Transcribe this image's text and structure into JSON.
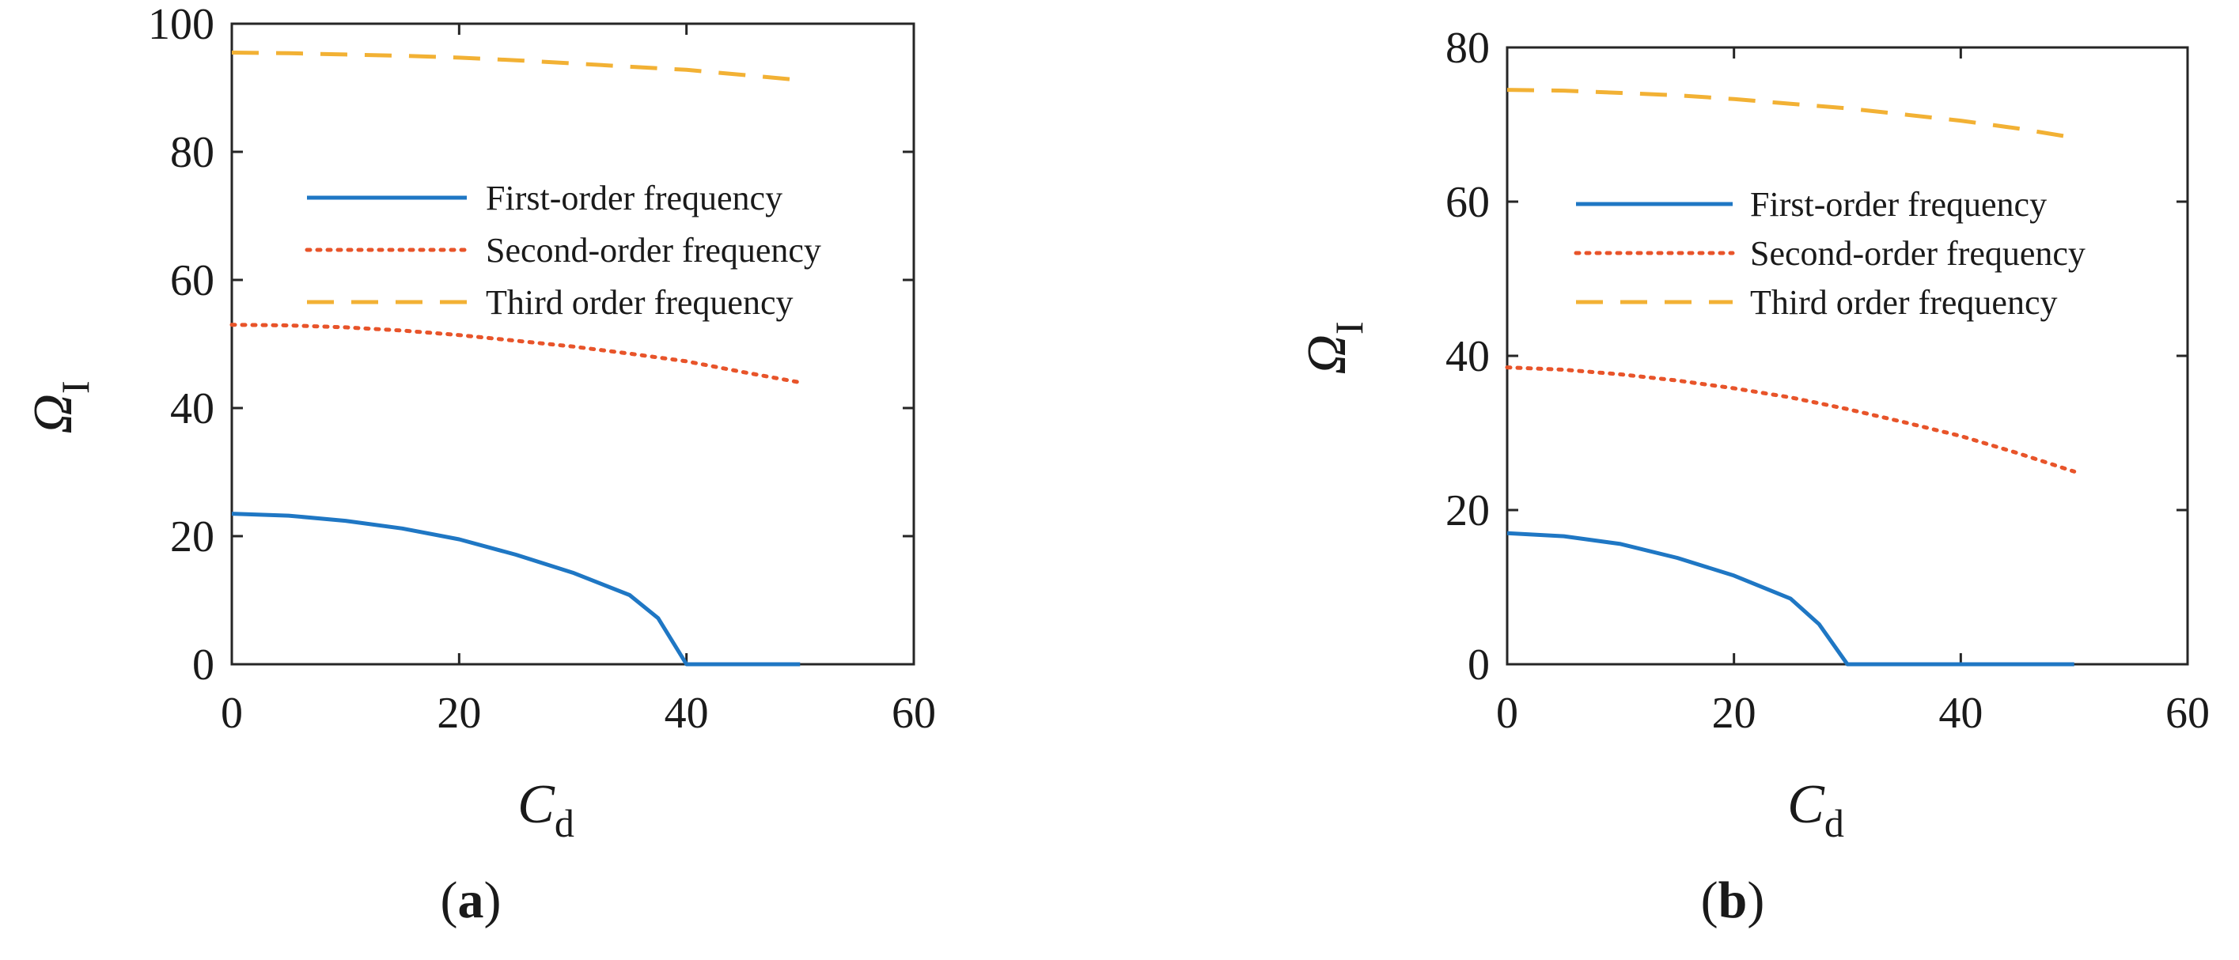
{
  "chart_data": [
    {
      "type": "line",
      "panel_label": "a",
      "xlabel": "C",
      "xlabel_sub": "d",
      "ylabel": "Ω",
      "ylabel_sub": "I",
      "xlim": [
        0,
        60
      ],
      "ylim": [
        0,
        100
      ],
      "xticks": [
        0,
        20,
        40,
        60
      ],
      "yticks": [
        0,
        20,
        40,
        60,
        80,
        100
      ],
      "grid": false,
      "legend_position": "upper-right",
      "series": [
        {
          "name": "First-order frequency",
          "color": "#1f77c4",
          "style": "solid",
          "x": [
            0,
            5,
            10,
            15,
            20,
            25,
            30,
            35,
            37.5,
            40,
            45,
            50
          ],
          "y": [
            23.5,
            23.2,
            22.4,
            21.2,
            19.5,
            17.1,
            14.3,
            10.8,
            7.2,
            0,
            0,
            0
          ]
        },
        {
          "name": "Second-order frequency",
          "color": "#e8542a",
          "style": "dotted",
          "x": [
            0,
            5,
            10,
            15,
            20,
            25,
            30,
            35,
            40,
            45,
            50
          ],
          "y": [
            53,
            52.9,
            52.6,
            52.1,
            51.4,
            50.5,
            49.6,
            48.5,
            47.3,
            45.6,
            44
          ]
        },
        {
          "name": "Third order frequency",
          "color": "#f2b134",
          "style": "dashed",
          "x": [
            0,
            5,
            10,
            15,
            20,
            25,
            30,
            35,
            40,
            45,
            50
          ],
          "y": [
            95.5,
            95.4,
            95.2,
            95,
            94.7,
            94.3,
            93.8,
            93.3,
            92.8,
            92,
            91.2
          ]
        }
      ]
    },
    {
      "type": "line",
      "panel_label": "b",
      "xlabel": "C",
      "xlabel_sub": "d",
      "ylabel": "Ω",
      "ylabel_sub": "I",
      "xlim": [
        0,
        60
      ],
      "ylim": [
        0,
        80
      ],
      "xticks": [
        0,
        20,
        40,
        60
      ],
      "yticks": [
        0,
        20,
        40,
        60,
        80
      ],
      "grid": false,
      "legend_position": "upper-right",
      "series": [
        {
          "name": "First-order frequency",
          "color": "#1f77c4",
          "style": "solid",
          "x": [
            0,
            5,
            10,
            15,
            20,
            25,
            27.5,
            30,
            35,
            40,
            45,
            50
          ],
          "y": [
            17,
            16.6,
            15.6,
            13.8,
            11.5,
            8.5,
            5.2,
            0,
            0,
            0,
            0,
            0
          ]
        },
        {
          "name": "Second-order frequency",
          "color": "#e8542a",
          "style": "dotted",
          "x": [
            0,
            5,
            10,
            15,
            20,
            25,
            30,
            35,
            40,
            45,
            50
          ],
          "y": [
            38.5,
            38.2,
            37.6,
            36.8,
            35.8,
            34.6,
            33.1,
            31.4,
            29.6,
            27.4,
            25
          ]
        },
        {
          "name": "Third order frequency",
          "color": "#f2b134",
          "style": "dashed",
          "x": [
            0,
            5,
            10,
            15,
            20,
            25,
            30,
            35,
            40,
            45,
            50
          ],
          "y": [
            74.5,
            74.4,
            74.1,
            73.8,
            73.3,
            72.7,
            72.1,
            71.3,
            70.5,
            69.5,
            68.3
          ]
        }
      ]
    }
  ]
}
